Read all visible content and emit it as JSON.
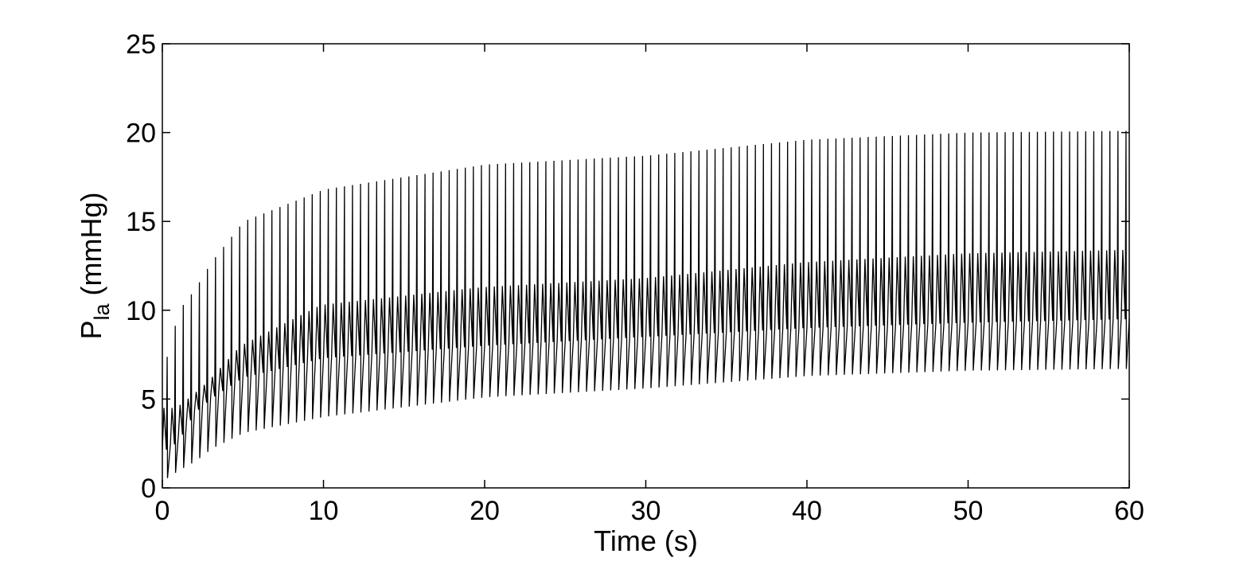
{
  "chart_data": {
    "type": "line",
    "title": "",
    "xlabel": "Time (s)",
    "ylabel": {
      "main": "P",
      "subscript": "la",
      "suffix": " (mmHg)"
    },
    "xlim": [
      0,
      60
    ],
    "ylim": [
      0,
      25
    ],
    "x_ticks": [
      "0",
      "10",
      "20",
      "30",
      "40",
      "50",
      "60"
    ],
    "y_ticks": [
      "0",
      "5",
      "10",
      "15",
      "20",
      "25"
    ],
    "grid": false,
    "legend": "none",
    "line_color": "#000000",
    "series": [
      {
        "beat_period_s": 0.5,
        "envelope": {
          "t": [
            0,
            1,
            2,
            3,
            5,
            10,
            20,
            30,
            40,
            50,
            60
          ],
          "peak": [
            6.5,
            10.0,
            11.2,
            12.7,
            15.0,
            16.8,
            18.2,
            18.7,
            19.6,
            20.0,
            20.1
          ],
          "trough": [
            0.4,
            1.0,
            1.5,
            2.2,
            3.1,
            4.0,
            5.1,
            5.6,
            6.3,
            6.6,
            6.7
          ],
          "upper_secondary": [
            4.5,
            4.5,
            5.2,
            6.0,
            8.0,
            10.3,
            11.3,
            11.8,
            12.7,
            13.2,
            13.4
          ],
          "lower_secondary": [
            2.0,
            2.6,
            4.2,
            5.0,
            6.2,
            7.3,
            8.0,
            8.5,
            9.0,
            9.3,
            9.5
          ]
        }
      }
    ]
  }
}
